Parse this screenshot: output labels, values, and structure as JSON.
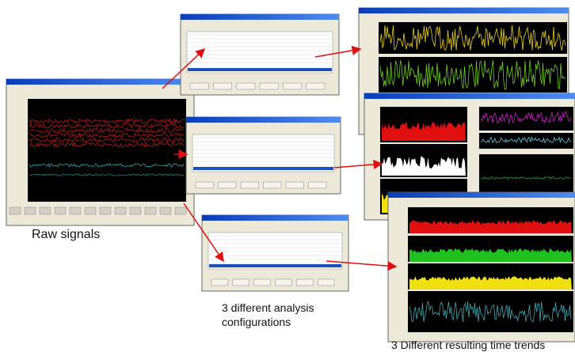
{
  "labels": {
    "raw": "Raw signals",
    "configs": "3 different analysis configurations",
    "trends": "3 Different resulting time trends"
  }
}
